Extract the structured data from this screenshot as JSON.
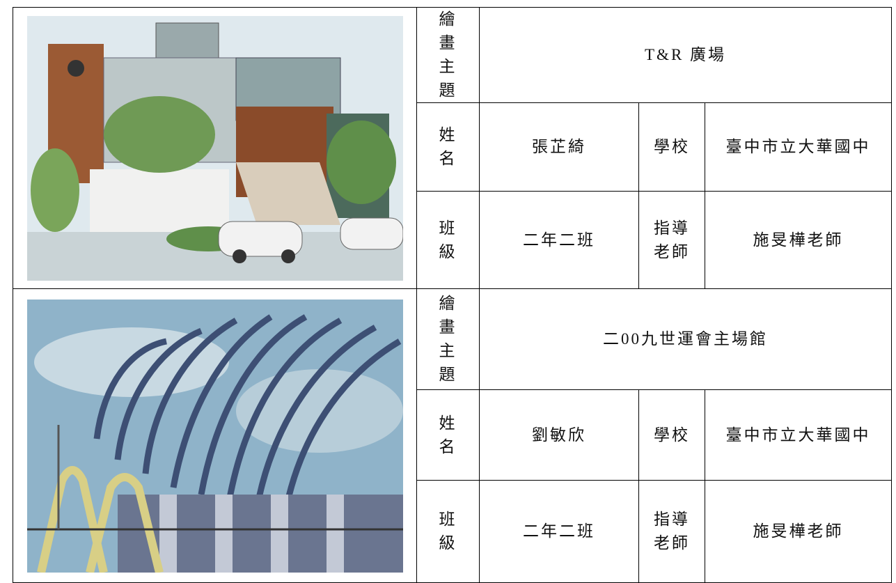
{
  "entries": [
    {
      "title_label": "繪畫主題",
      "title": "T&R 廣場",
      "name_label": "姓名",
      "name": "張芷綺",
      "school_label": "學校",
      "school": "臺中市立大華國中",
      "class_label": "班級",
      "class": "二年二班",
      "teacher_label": "指導老師",
      "teacher": "施旻樺老師"
    },
    {
      "title_label": "繪畫主題",
      "title": "二00九世運會主場館",
      "name_label": "姓名",
      "name": "劉敏欣",
      "school_label": "學校",
      "school": "臺中市立大華國中",
      "class_label": "班級",
      "class": "二年二班",
      "teacher_label": "指導老師",
      "teacher": "施旻樺老師"
    }
  ]
}
